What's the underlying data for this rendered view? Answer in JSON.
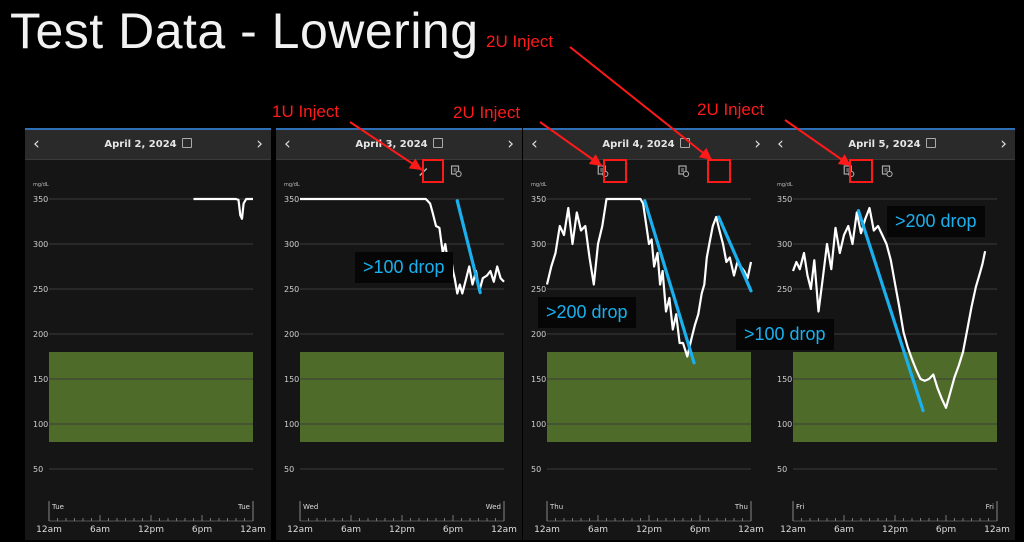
{
  "title": "Test Data - Lowering",
  "panels": [
    {
      "date": "April 2, 2024",
      "day": "Tue",
      "has_edit_icon": false,
      "event_icons": []
    },
    {
      "date": "April 3, 2024",
      "day": "Wed",
      "has_edit_icon": true,
      "event_icons": [
        {
          "time": 14.5,
          "kind": "edit"
        },
        {
          "time": 18.3,
          "kind": "note"
        }
      ]
    },
    {
      "date": "April 4, 2024",
      "day": "Thu",
      "has_edit_icon": false,
      "event_icons": [
        {
          "time": 6.5,
          "kind": "note"
        },
        {
          "time": 16.0,
          "kind": "note"
        }
      ]
    },
    {
      "date": "April 5, 2024",
      "day": "Fri",
      "has_edit_icon": false,
      "event_icons": [
        {
          "time": 6.5,
          "kind": "note"
        },
        {
          "time": 11.0,
          "kind": "note"
        }
      ]
    }
  ],
  "axes": {
    "y_unit": "mg/dL",
    "y_ticks": [
      "350",
      "300",
      "250",
      "200",
      "150",
      "100",
      "50"
    ],
    "x_ticks": [
      "12am",
      "6am",
      "12pm",
      "6pm",
      "12am"
    ]
  },
  "annotations": {
    "injections": [
      {
        "label": "1U Inject"
      },
      {
        "label": "2U Inject"
      },
      {
        "label": "2U Inject"
      },
      {
        "label": "2U Inject"
      }
    ],
    "drops": [
      {
        "label": ">100 drop"
      },
      {
        "label": ">200 drop"
      },
      {
        "label": ">100 drop"
      },
      {
        "label": ">200 drop"
      }
    ]
  },
  "colors": {
    "background": "#000000",
    "panel": "#151515",
    "header": "#2a2a2a",
    "target_band": "#4e6b2a",
    "trace": "#ffffff",
    "trend": "#1ab0ee",
    "annotation": "#ff1a1a",
    "accent": "#2f6fb5"
  },
  "chart_data": [
    {
      "type": "line",
      "title": "April 2, 2024",
      "xlabel": "",
      "ylabel": "mg/dL",
      "xlim": [
        0,
        24
      ],
      "ylim": [
        30,
        365
      ],
      "target_range": [
        80,
        180
      ],
      "series": [
        {
          "x": [
            17.0,
            22.0,
            22.3,
            22.5,
            22.7,
            22.9,
            23.2,
            24.0
          ],
          "y": [
            350,
            350,
            349,
            332,
            328,
            345,
            350,
            350
          ]
        }
      ]
    },
    {
      "type": "line",
      "title": "April 3, 2024",
      "xlabel": "",
      "ylabel": "mg/dL",
      "xlim": [
        0,
        24
      ],
      "ylim": [
        30,
        365
      ],
      "target_range": [
        80,
        180
      ],
      "series": [
        {
          "x": [
            0,
            14.8,
            15.3,
            15.6,
            16.0,
            16.4,
            16.8,
            17.1,
            17.4,
            17.7,
            18.0,
            18.2,
            18.5,
            18.8,
            19.1,
            19.5,
            19.9,
            20.3,
            20.7,
            21.1,
            21.5,
            22.0,
            22.4,
            22.8,
            23.2,
            23.6,
            24.0
          ],
          "y": [
            350,
            350,
            345,
            335,
            320,
            318,
            290,
            300,
            280,
            290,
            270,
            262,
            245,
            255,
            245,
            260,
            275,
            255,
            270,
            248,
            262,
            265,
            270,
            258,
            275,
            262,
            258
          ]
        }
      ],
      "trend": {
        "x": [
          18.5,
          21.2
        ],
        "y": [
          348,
          246
        ]
      }
    },
    {
      "type": "line",
      "title": "April 4, 2024",
      "xlabel": "",
      "ylabel": "mg/dL",
      "xlim": [
        0,
        24
      ],
      "ylim": [
        30,
        365
      ],
      "target_range": [
        80,
        180
      ],
      "series": [
        {
          "x": [
            0,
            0.5,
            1.0,
            1.5,
            2.0,
            2.5,
            3.0,
            3.5,
            4.0,
            4.5,
            5.0,
            5.5,
            6.0,
            6.5,
            7.0,
            11.0,
            11.3,
            11.7,
            12.0,
            12.3,
            12.6,
            13.0,
            13.3,
            13.6,
            14.0,
            14.4,
            14.8,
            15.2,
            15.6,
            16.0,
            16.5,
            17.0,
            17.4,
            17.8,
            18.2,
            18.5,
            18.8,
            19.1,
            19.5,
            19.9,
            20.3,
            20.7,
            21.1,
            21.5,
            22.0,
            22.4,
            22.8,
            23.2,
            23.6,
            24.0
          ],
          "y": [
            255,
            275,
            290,
            320,
            310,
            340,
            300,
            335,
            315,
            320,
            285,
            255,
            300,
            320,
            350,
            350,
            345,
            320,
            300,
            305,
            275,
            290,
            255,
            270,
            225,
            240,
            205,
            222,
            190,
            190,
            175,
            195,
            210,
            222,
            245,
            255,
            285,
            300,
            320,
            330,
            315,
            300,
            280,
            285,
            265,
            280,
            275,
            270,
            262,
            280
          ]
        }
      ],
      "trend": [
        {
          "x": [
            11.5,
            17.3
          ],
          "y": [
            348,
            168
          ]
        },
        {
          "x": [
            20.2,
            24.0
          ],
          "y": [
            330,
            248
          ]
        }
      ]
    },
    {
      "type": "line",
      "title": "April 5, 2024",
      "xlabel": "",
      "ylabel": "mg/dL",
      "xlim": [
        0,
        24
      ],
      "ylim": [
        30,
        365
      ],
      "target_range": [
        80,
        180
      ],
      "series": [
        {
          "x": [
            0,
            0.4,
            0.8,
            1.3,
            1.7,
            2.1,
            2.5,
            3.0,
            3.5,
            4.0,
            4.5,
            5.0,
            5.5,
            6.0,
            6.5,
            7.0,
            7.5,
            8.0,
            8.5,
            9.0,
            9.5,
            10.0,
            10.5,
            11.0,
            11.5,
            12.0,
            12.5,
            13.0,
            13.5,
            14.0,
            14.5,
            15.0,
            15.5,
            16.0,
            16.5,
            17.0,
            17.5,
            18.0,
            18.5,
            19.0,
            19.5,
            20.0,
            20.5,
            21.0,
            21.5,
            22.0,
            22.3,
            22.6
          ],
          "y": [
            270,
            280,
            272,
            290,
            265,
            250,
            282,
            225,
            262,
            300,
            272,
            318,
            290,
            310,
            320,
            300,
            335,
            312,
            328,
            340,
            315,
            320,
            310,
            300,
            282,
            256,
            230,
            202,
            185,
            172,
            160,
            150,
            148,
            150,
            155,
            140,
            128,
            118,
            135,
            152,
            165,
            180,
            205,
            230,
            252,
            268,
            278,
            292
          ]
        }
      ],
      "trend": {
        "x": [
          7.7,
          15.3
        ],
        "y": [
          337,
          115
        ]
      }
    }
  ]
}
